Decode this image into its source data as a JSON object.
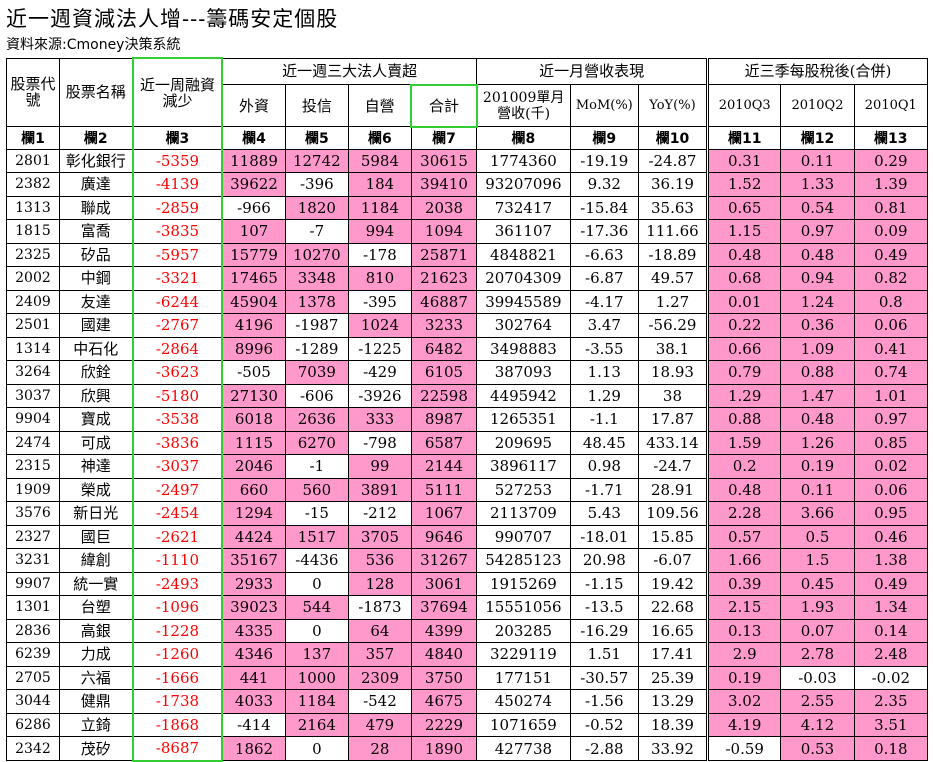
{
  "title": "近一週資減法人增---籌碼安定個股",
  "source": "資料來源:Cmoney決策系統",
  "headers": {
    "stock_code": "股票代號",
    "stock_name": "股票名稱",
    "margin_decrease": "近一周融資減少",
    "group_institutional": "近一週三大法人賣超",
    "group_revenue": "近一月營收表現",
    "group_eps": "近三季每股稅後(合併)",
    "foreign": "外資",
    "trust": "投信",
    "dealer": "自營",
    "total": "合計",
    "revenue": "201009單月營收(千)",
    "mom": "MoM(%)",
    "yoy": "YoY(%)",
    "q3": "2010Q3",
    "q2": "2010Q2",
    "q1": "2010Q1",
    "fields": [
      "欄1",
      "欄2",
      "欄3",
      "欄4",
      "欄5",
      "欄6",
      "欄7",
      "欄8",
      "欄9",
      "欄10",
      "欄11",
      "欄12",
      "欄13"
    ]
  },
  "colors": {
    "highlight": "#ff99cc",
    "negative_text": "#ff0000",
    "border_green": "#33cc33"
  },
  "rows": [
    [
      "2801",
      "彰化銀行",
      "-5359",
      "11889",
      "12742",
      "5984",
      "30615",
      "1774360",
      "-19.19",
      "-24.87",
      "0.31",
      "0.11",
      "0.29"
    ],
    [
      "2382",
      "廣達",
      "-4139",
      "39622",
      "-396",
      "184",
      "39410",
      "93207096",
      "9.32",
      "36.19",
      "1.52",
      "1.33",
      "1.39"
    ],
    [
      "1313",
      "聯成",
      "-2859",
      "-966",
      "1820",
      "1184",
      "2038",
      "732417",
      "-15.84",
      "35.63",
      "0.65",
      "0.54",
      "0.81"
    ],
    [
      "1815",
      "富喬",
      "-3835",
      "107",
      "-7",
      "994",
      "1094",
      "361107",
      "-17.36",
      "111.66",
      "1.15",
      "0.97",
      "0.09"
    ],
    [
      "2325",
      "矽品",
      "-5957",
      "15779",
      "10270",
      "-178",
      "25871",
      "4848821",
      "-6.63",
      "-18.89",
      "0.48",
      "0.48",
      "0.49"
    ],
    [
      "2002",
      "中鋼",
      "-3321",
      "17465",
      "3348",
      "810",
      "21623",
      "20704309",
      "-6.87",
      "49.57",
      "0.68",
      "0.94",
      "0.82"
    ],
    [
      "2409",
      "友達",
      "-6244",
      "45904",
      "1378",
      "-395",
      "46887",
      "39945589",
      "-4.17",
      "1.27",
      "0.01",
      "1.24",
      "0.8"
    ],
    [
      "2501",
      "國建",
      "-2767",
      "4196",
      "-1987",
      "1024",
      "3233",
      "302764",
      "3.47",
      "-56.29",
      "0.22",
      "0.36",
      "0.06"
    ],
    [
      "1314",
      "中石化",
      "-2864",
      "8996",
      "-1289",
      "-1225",
      "6482",
      "3498883",
      "-3.55",
      "38.1",
      "0.66",
      "1.09",
      "0.41"
    ],
    [
      "3264",
      "欣銓",
      "-3623",
      "-505",
      "7039",
      "-429",
      "6105",
      "387093",
      "1.13",
      "18.93",
      "0.79",
      "0.88",
      "0.74"
    ],
    [
      "3037",
      "欣興",
      "-5180",
      "27130",
      "-606",
      "-3926",
      "22598",
      "4495942",
      "1.29",
      "38",
      "1.29",
      "1.47",
      "1.01"
    ],
    [
      "9904",
      "寶成",
      "-3538",
      "6018",
      "2636",
      "333",
      "8987",
      "1265351",
      "-1.1",
      "17.87",
      "0.88",
      "0.48",
      "0.97"
    ],
    [
      "2474",
      "可成",
      "-3836",
      "1115",
      "6270",
      "-798",
      "6587",
      "209695",
      "48.45",
      "433.14",
      "1.59",
      "1.26",
      "0.85"
    ],
    [
      "2315",
      "神達",
      "-3037",
      "2046",
      "-1",
      "99",
      "2144",
      "3896117",
      "0.98",
      "-24.7",
      "0.2",
      "0.19",
      "0.02"
    ],
    [
      "1909",
      "榮成",
      "-2497",
      "660",
      "560",
      "3891",
      "5111",
      "527253",
      "-1.71",
      "28.91",
      "0.48",
      "0.11",
      "0.06"
    ],
    [
      "3576",
      "新日光",
      "-2454",
      "1294",
      "-15",
      "-212",
      "1067",
      "2113709",
      "5.43",
      "109.56",
      "2.28",
      "3.66",
      "0.95"
    ],
    [
      "2327",
      "國巨",
      "-2621",
      "4424",
      "1517",
      "3705",
      "9646",
      "990707",
      "-18.01",
      "15.85",
      "0.57",
      "0.5",
      "0.46"
    ],
    [
      "3231",
      "緯創",
      "-1110",
      "35167",
      "-4436",
      "536",
      "31267",
      "54285123",
      "20.98",
      "-6.07",
      "1.66",
      "1.5",
      "1.38"
    ],
    [
      "9907",
      "統一實",
      "-2493",
      "2933",
      "0",
      "128",
      "3061",
      "1915269",
      "-1.15",
      "19.42",
      "0.39",
      "0.45",
      "0.49"
    ],
    [
      "1301",
      "台塑",
      "-1096",
      "39023",
      "544",
      "-1873",
      "37694",
      "15551056",
      "-13.5",
      "22.68",
      "2.15",
      "1.93",
      "1.34"
    ],
    [
      "2836",
      "高銀",
      "-1228",
      "4335",
      "0",
      "64",
      "4399",
      "203285",
      "-16.29",
      "16.65",
      "0.13",
      "0.07",
      "0.14"
    ],
    [
      "6239",
      "力成",
      "-1260",
      "4346",
      "137",
      "357",
      "4840",
      "3229119",
      "1.51",
      "17.41",
      "2.9",
      "2.78",
      "2.48"
    ],
    [
      "2705",
      "六福",
      "-1666",
      "441",
      "1000",
      "2309",
      "3750",
      "177151",
      "-30.57",
      "25.39",
      "0.19",
      "-0.03",
      "-0.02"
    ],
    [
      "3044",
      "健鼎",
      "-1738",
      "4033",
      "1184",
      "-542",
      "4675",
      "450274",
      "-1.56",
      "13.29",
      "3.02",
      "2.55",
      "2.35"
    ],
    [
      "6286",
      "立錡",
      "-1868",
      "-414",
      "2164",
      "479",
      "2229",
      "1071659",
      "-0.52",
      "18.39",
      "4.19",
      "4.12",
      "3.51"
    ],
    [
      "2342",
      "茂矽",
      "-8687",
      "1862",
      "0",
      "28",
      "1890",
      "427738",
      "-2.88",
      "33.92",
      "-0.59",
      "0.53",
      "0.18"
    ]
  ]
}
